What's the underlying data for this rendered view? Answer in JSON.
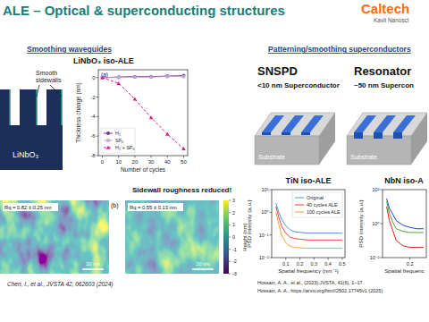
{
  "header": {
    "title": "ALE – Optical & superconducting structures",
    "logo": "Caltech",
    "logo_sub": "Kavli Nanosci"
  },
  "waveguides": {
    "heading": "Smoothing waveguides",
    "sidewall_label": "Smooth sidewalls",
    "material": "LiNbO₃",
    "afm": {
      "panel": "(b)",
      "annotation": "Sidewall roughness reduced!",
      "images": [
        {
          "rq": "Rq = 0.82 ± 0.25 nm",
          "scale": "20 nm"
        },
        {
          "rq": "Rq = 0.55 ± 0.13 nm",
          "scale": "20 nm"
        }
      ],
      "colorbar": {
        "range": [
          -3,
          3
        ],
        "ticks": [
          3,
          2,
          1,
          0,
          -1,
          -2,
          -3
        ],
        "label": "Height (nm)"
      }
    },
    "citation": "Chen, I., et al., JVSTA 42, 062603 (2024)"
  },
  "superconductors": {
    "heading": "Patterning/smoothing superconductors",
    "devices": [
      {
        "name": "SNSPD",
        "layer": "<10 nm Superconductor",
        "substrate": "Substrate"
      },
      {
        "name": "Resonator",
        "layer": "~50 nm Supercon",
        "substrate": "Substrate"
      }
    ],
    "citations": [
      "Hossain, A. A., et al., (2023).JVSTA, 41(6), 1–17.",
      "Hossain, A. A., https://arxiv.org/html/2502.17745v1 (2025)"
    ]
  },
  "chart_data": [
    {
      "type": "line",
      "title": "LiNbO₃ iso-ALE",
      "annotations": [
        "(a)"
      ],
      "x_label": "Number of cycles",
      "y_label": "Thickness change (nm)",
      "x": [
        0,
        10,
        20,
        30,
        40,
        50
      ],
      "xlim": [
        -2.5,
        52.5
      ],
      "xticks": [
        0,
        10,
        20,
        30,
        40,
        50
      ],
      "ylim": [
        -8,
        0.8
      ],
      "yticks": [
        0,
        -2,
        -4,
        -6,
        -8
      ],
      "grid": false,
      "legend": "lower left",
      "series": [
        {
          "name": "H₂",
          "color": "#7b3294",
          "marker": "circle",
          "line_style": "solid",
          "values": [
            0,
            0.05,
            0.1,
            0.1,
            0.15,
            0.2
          ]
        },
        {
          "name": "SF₆",
          "color": "#c2a5cf",
          "marker": "square",
          "line_style": "solid",
          "values": [
            0,
            0,
            0.05,
            0.05,
            0.1,
            0.1
          ]
        },
        {
          "name": "H₂ + SF₆",
          "color": "#d01c8b",
          "marker": "triangle",
          "line_style": "dashed",
          "values": [
            0,
            -0.6,
            -2.2,
            -4.1,
            -5.8,
            -7.3
          ]
        }
      ]
    },
    {
      "type": "line",
      "title": "TiN iso-ALE",
      "x_label": "Spatial frequency (nm⁻¹)",
      "y_label": "PSD intensity (a.u.)",
      "log": "y",
      "x": [
        0.03,
        0.05,
        0.07,
        0.1,
        0.13,
        0.16,
        0.2,
        0.25,
        0.3,
        0.35,
        0.4,
        0.45,
        0.5
      ],
      "xlim": [
        0,
        0.52
      ],
      "xticks": [
        0.1,
        0.2,
        0.3,
        0.4,
        0.5
      ],
      "ylim": [
        0.01,
        10
      ],
      "yticks": [
        {
          "value": 0.01,
          "label": "10⁻²"
        },
        {
          "value": 0.1,
          "label": "10⁻¹"
        },
        {
          "value": 1,
          "label": "10⁰"
        },
        {
          "value": 10,
          "label": "10¹"
        }
      ],
      "grid": false,
      "legend": "upper right",
      "series": [
        {
          "name": "Original",
          "color": "#4a90d9",
          "line_style": "solid",
          "values": [
            2.5,
            1.0,
            0.5,
            0.25,
            0.17,
            0.14,
            0.13,
            0.12,
            0.12,
            0.12,
            0.12,
            0.12,
            0.12
          ]
        },
        {
          "name": "40 cycles ALE",
          "color": "#e8433a",
          "line_style": "solid",
          "values": [
            1.8,
            0.6,
            0.25,
            0.12,
            0.08,
            0.07,
            0.065,
            0.06,
            0.06,
            0.06,
            0.06,
            0.06,
            0.06
          ]
        },
        {
          "name": "100 cycles ALE",
          "color": "#f2a33a",
          "line_style": "solid",
          "values": [
            1.0,
            0.3,
            0.1,
            0.045,
            0.032,
            0.028,
            0.027,
            0.026,
            0.026,
            0.026,
            0.026,
            0.026,
            0.026
          ]
        }
      ]
    },
    {
      "type": "line",
      "title": "NbN iso-A",
      "x_label": "Spatial frequenc",
      "y_label": "PSD intensity (a.u.)",
      "log": "y",
      "x": [
        0.03,
        0.05,
        0.08,
        0.1,
        0.15,
        0.2,
        0.25,
        0.3
      ],
      "xlim": [
        0,
        0.32
      ],
      "xticks": [
        0.2
      ],
      "ylim": [
        0.01,
        100
      ],
      "yticks": [
        {
          "value": 0.01,
          "label": "10⁻²"
        },
        {
          "value": 1,
          "label": "10⁰"
        },
        {
          "value": 100,
          "label": "10²"
        }
      ],
      "grid": false,
      "series": [
        {
          "color": "#1f3fd6",
          "line_style": "solid",
          "values": [
            30,
            8,
            3,
            1.5,
            0.8,
            0.6,
            0.5,
            0.5
          ]
        },
        {
          "color": "#4aa832",
          "line_style": "solid",
          "values": [
            20,
            4,
            1,
            0.5,
            0.35,
            0.3,
            0.3,
            0.3
          ]
        },
        {
          "color": "#e0201b",
          "line_style": "solid",
          "values": [
            10,
            1.5,
            0.3,
            0.1,
            0.05,
            0.04,
            0.04,
            0.04
          ]
        }
      ]
    }
  ]
}
